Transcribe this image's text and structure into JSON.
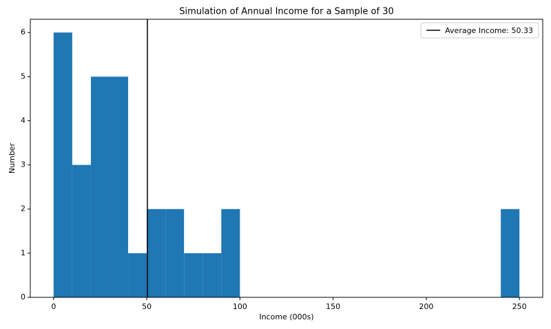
{
  "chart_data": {
    "type": "histogram",
    "title": "Simulation of Annual Income for a Sample of 30",
    "x_label": "Income (000s)",
    "y_label": "Number",
    "bins": [
      0,
      10,
      20,
      30,
      40,
      50,
      60,
      70,
      80,
      90,
      100,
      110,
      120,
      130,
      140,
      150,
      160,
      170,
      180,
      190,
      200,
      210,
      220,
      230,
      240,
      250
    ],
    "counts": [
      6,
      3,
      5,
      5,
      1,
      2,
      2,
      1,
      1,
      2,
      0,
      0,
      0,
      0,
      0,
      0,
      0,
      0,
      0,
      0,
      0,
      0,
      0,
      0,
      2
    ],
    "color": "#1f77b4",
    "avg_line": {
      "value": 50.33,
      "label": "Average Income: 50.33",
      "color": "#000000"
    },
    "xlim": [
      -12.5,
      262.5
    ],
    "ylim": [
      0,
      6.3
    ],
    "xticks": [
      0,
      50,
      100,
      150,
      200,
      250
    ],
    "yticks": [
      0,
      1,
      2,
      3,
      4,
      5,
      6
    ],
    "legend": "upper right"
  }
}
